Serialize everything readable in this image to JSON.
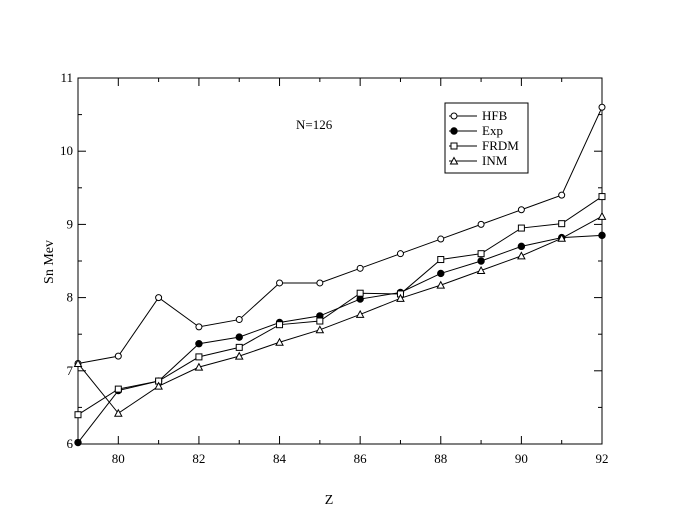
{
  "chart_data": {
    "type": "line",
    "title": "",
    "xlabel": "Z",
    "ylabel": "Sn Mev",
    "annotation": "N=126",
    "xlim": [
      79,
      92
    ],
    "ylim": [
      6,
      11
    ],
    "x_ticks": [
      80,
      82,
      84,
      86,
      88,
      90,
      92
    ],
    "y_ticks": [
      6,
      7,
      8,
      9,
      10,
      11
    ],
    "grid": false,
    "legend_position": "top-right",
    "x": [
      79,
      80,
      81,
      82,
      83,
      84,
      85,
      86,
      87,
      88,
      89,
      90,
      91,
      92
    ],
    "series": [
      {
        "name": "HFB",
        "marker": "open-circle",
        "values": [
          7.1,
          7.2,
          8.0,
          7.6,
          7.7,
          8.2,
          8.2,
          8.4,
          8.6,
          8.8,
          9.0,
          9.2,
          9.4,
          10.6
        ]
      },
      {
        "name": "Exp",
        "marker": "filled-circle",
        "values": [
          6.02,
          6.73,
          6.86,
          7.37,
          7.46,
          7.66,
          7.75,
          7.98,
          8.07,
          8.33,
          8.5,
          8.7,
          8.82,
          8.85
        ]
      },
      {
        "name": "FRDM",
        "marker": "open-square",
        "values": [
          6.4,
          6.75,
          6.86,
          7.19,
          7.32,
          7.63,
          7.68,
          8.06,
          8.05,
          8.52,
          8.6,
          8.95,
          9.01,
          9.38
        ]
      },
      {
        "name": "INM",
        "marker": "open-triangle",
        "values": [
          7.1,
          6.42,
          6.79,
          7.05,
          7.2,
          7.39,
          7.56,
          7.77,
          7.99,
          8.17,
          8.37,
          8.57,
          8.81,
          9.11
        ]
      }
    ]
  }
}
